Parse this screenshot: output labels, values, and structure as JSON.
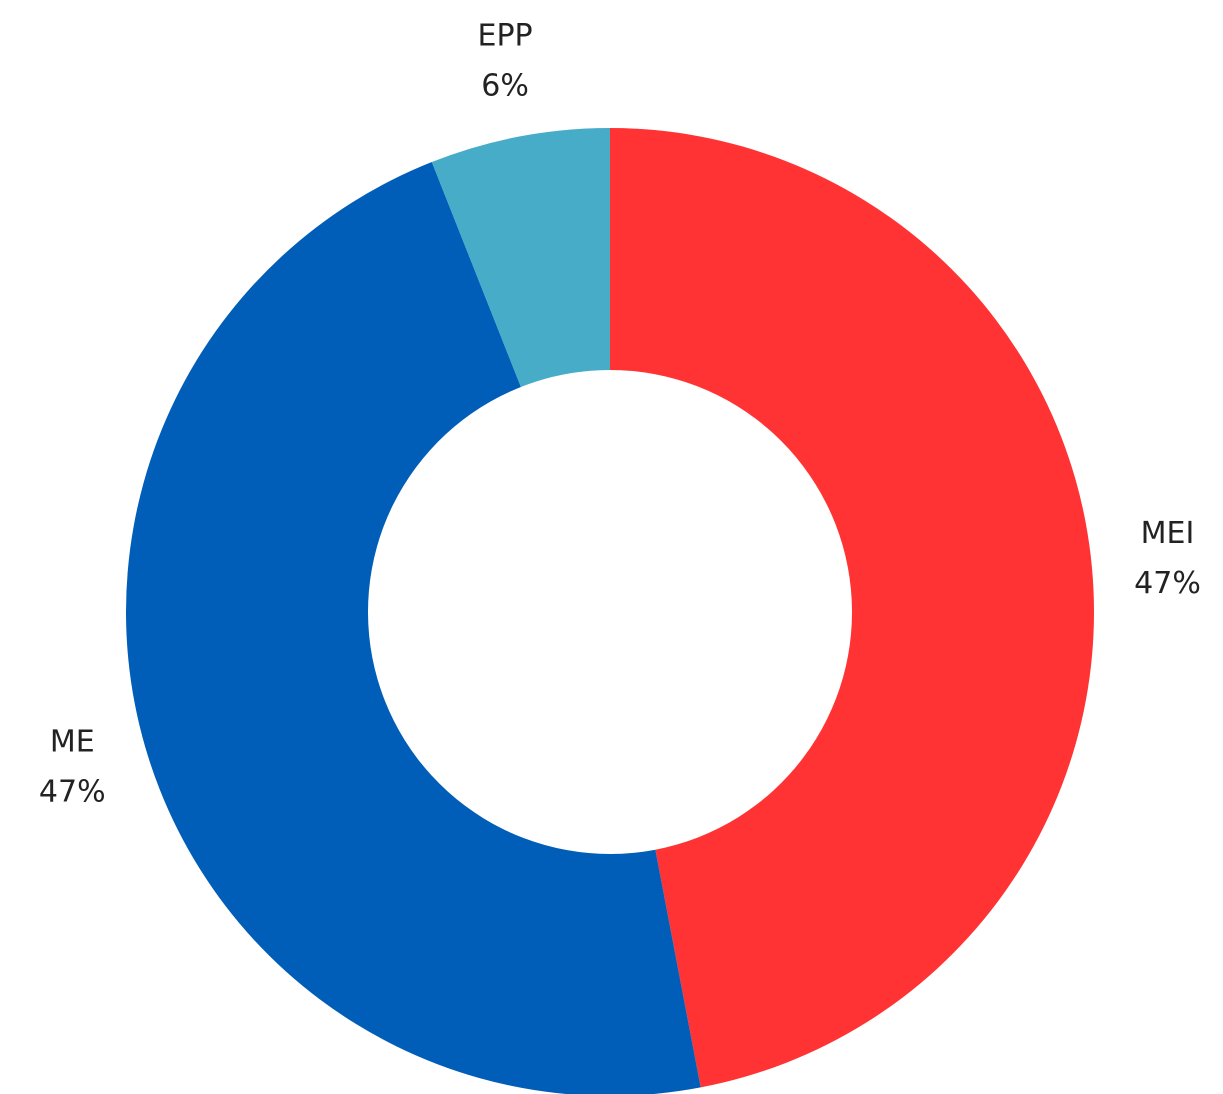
{
  "chart_data": {
    "type": "donut",
    "categories": [
      "MEI",
      "ME",
      "EPP"
    ],
    "values": [
      47,
      47,
      6
    ],
    "value_labels": [
      "47%",
      "47%",
      "6%"
    ],
    "colors": [
      "#ff3333",
      "#005eb8",
      "#46acc8"
    ]
  }
}
